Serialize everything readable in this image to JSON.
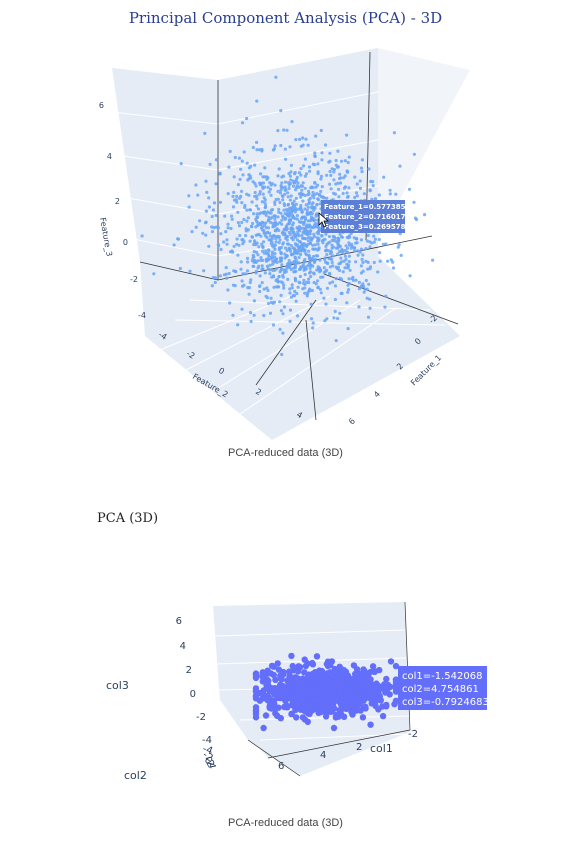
{
  "chart_data": [
    {
      "type": "scatter",
      "title": "Principal Component Analysis (PCA) - 3D",
      "caption": "PCA-reduced data (3D)",
      "axes": {
        "x": {
          "label": "Feature_1",
          "ticks": [
            "6",
            "4",
            "2",
            "0",
            "-2"
          ],
          "range": [
            -3,
            6
          ]
        },
        "y": {
          "label": "Feature_2",
          "ticks": [
            "-4",
            "-2",
            "0",
            "2",
            "4"
          ],
          "range": [
            -5,
            5
          ]
        },
        "z": {
          "label": "Feature_3",
          "ticks": [
            "6",
            "4",
            "2",
            "0",
            "-2",
            "-4"
          ],
          "range": [
            -5,
            7
          ]
        }
      },
      "grid": true,
      "marker_color": "#6aa4f5",
      "hover": {
        "lines": [
          "Feature_1=0.5773851",
          "Feature_2=0.7160174",
          "Feature_3=0.2695787"
        ]
      }
    },
    {
      "type": "scatter",
      "title": "PCA (3D)",
      "caption": "PCA-reduced data (3D)",
      "axes": {
        "x": {
          "label": "col1",
          "ticks": [
            "6",
            "4",
            "2",
            "-2"
          ]
        },
        "y": {
          "label": "col2",
          "ticks": [
            "-4",
            "-2",
            "0",
            "2",
            "4"
          ]
        },
        "z": {
          "label": "col3",
          "ticks": [
            "6",
            "4",
            "2",
            "0",
            "-2",
            "-4"
          ]
        }
      },
      "grid": true,
      "marker_color": "#636efa",
      "hover": {
        "lines": [
          "col1=-1.542068",
          "col2=4.754861",
          "col3=-0.7924683"
        ]
      }
    }
  ]
}
